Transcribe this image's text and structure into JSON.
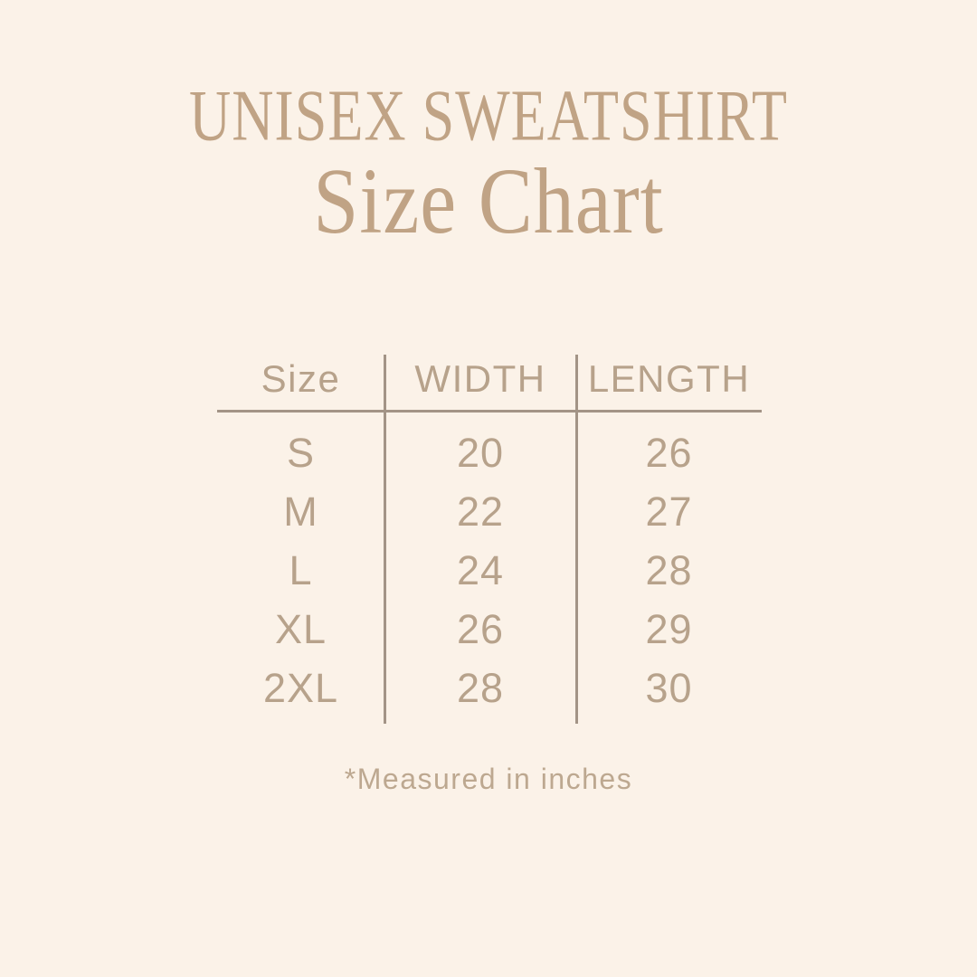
{
  "colors": {
    "background": "#fbf2e8",
    "heading_tan": "#c0a385",
    "table_text": "#b7a28b",
    "divider_line": "#a39486",
    "footnote_text": "#bda890"
  },
  "chart_data": {
    "type": "table",
    "title": "UNISEX SWEATSHIRT",
    "subtitle": "Size Chart",
    "columns": [
      "Size",
      "WIDTH",
      "LENGTH"
    ],
    "rows": [
      [
        "S",
        20,
        26
      ],
      [
        "M",
        22,
        27
      ],
      [
        "L",
        24,
        28
      ],
      [
        "XL",
        26,
        29
      ],
      [
        "2XL",
        28,
        30
      ]
    ],
    "footnote": "*Measured in inches",
    "units": "inches",
    "layout": {
      "grid": "off",
      "legend": "none",
      "column_dividers": true,
      "header_underline": true
    }
  }
}
